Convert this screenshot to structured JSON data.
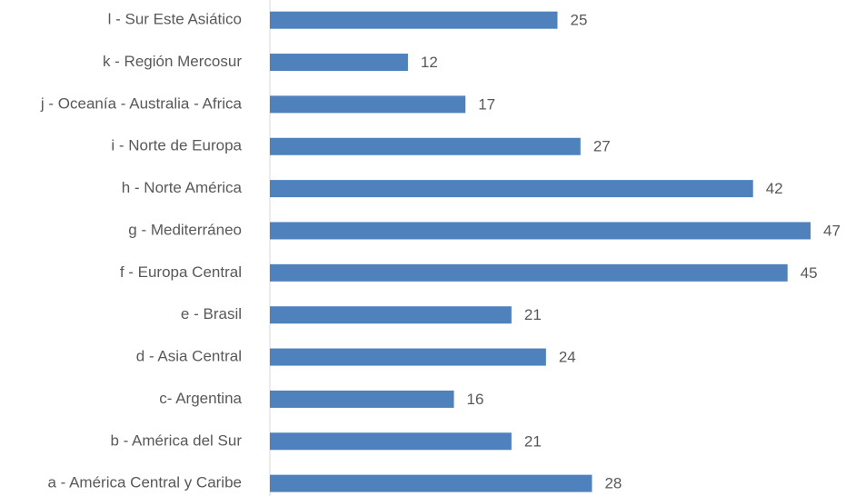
{
  "chart_data": {
    "type": "barh",
    "categories": [
      "l - Sur Este Asiático",
      "k - Región Mercosur",
      "j - Oceanía - Australia - Africa",
      "i - Norte de Europa",
      "h - Norte América",
      "g - Mediterráneo",
      "f - Europa Central",
      "e - Brasil",
      "d - Asia Central",
      "c- Argentina",
      "b - América del Sur",
      "a - América Central y Caribe"
    ],
    "values": [
      25,
      12,
      17,
      27,
      42,
      47,
      45,
      21,
      24,
      16,
      21,
      28
    ],
    "color": "#4f81bd",
    "xlim": [
      0,
      50
    ]
  }
}
